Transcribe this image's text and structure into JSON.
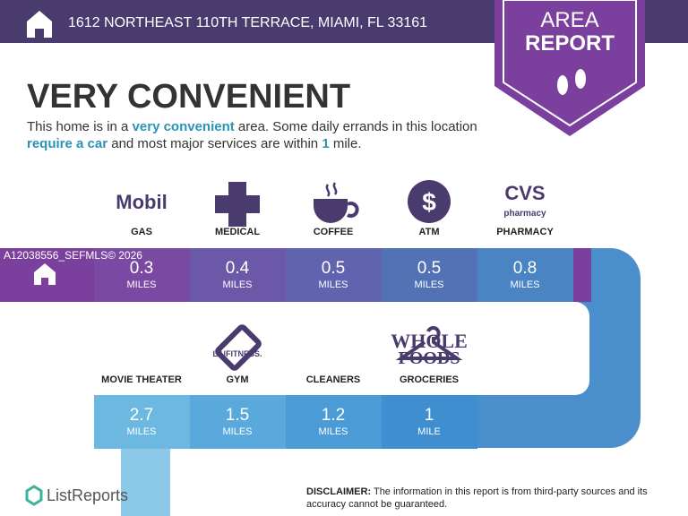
{
  "header": {
    "address": "1612 NORTHEAST 110TH TERRACE, MIAMI, FL 33161"
  },
  "badge": {
    "lines": [
      "AREA",
      "REPORT"
    ]
  },
  "title": "VERY CONVENIENT",
  "description": [
    {
      "text": "This home is in a ",
      "emphasis": false
    },
    {
      "text": "very convenient",
      "emphasis": true
    },
    {
      "text": " area. Some daily errands in this location ",
      "emphasis": false
    },
    {
      "text": "require a car",
      "emphasis": true
    },
    {
      "text": " and most major services are within ",
      "emphasis": false
    },
    {
      "text": "1",
      "emphasis": true
    },
    {
      "text": " mile.",
      "emphasis": false
    }
  ],
  "rows": [
    [
      {
        "label": "GAS",
        "logo": "Mobil",
        "distance": 0.3,
        "unit": "MILES"
      },
      {
        "label": "MEDICAL",
        "distance": 0.4,
        "unit": "MILES"
      },
      {
        "label": "COFFEE",
        "distance": 0.5,
        "unit": "MILES"
      },
      {
        "label": "ATM",
        "logo": "$",
        "distance": 0.5,
        "unit": "MILES"
      },
      {
        "label": "PHARMACY",
        "logo": "CVS",
        "logo_sub": "pharmacy",
        "distance": 0.8,
        "unit": "MILES"
      }
    ],
    [
      {
        "label": "MOVIE THEATER",
        "distance": 2.7,
        "unit": "MILES"
      },
      {
        "label": "GYM",
        "logo": "LA|FITNESS.",
        "distance": 1.5,
        "unit": "MILES"
      },
      {
        "label": "CLEANERS",
        "distance": 1.2,
        "unit": "MILES"
      },
      {
        "label": "GROCERIES",
        "logo": "WHOLE",
        "logo_sub": "FOODS",
        "distance": 1,
        "unit": "MILE"
      }
    ]
  ],
  "watermark": "A12038556_SEFMLS© 2026",
  "footer": {
    "brand": "ListReports",
    "disclaimer_label": "DISCLAIMER:",
    "disclaimer": "The information in this report is from third-party sources and its accuracy cannot be guaranteed."
  }
}
